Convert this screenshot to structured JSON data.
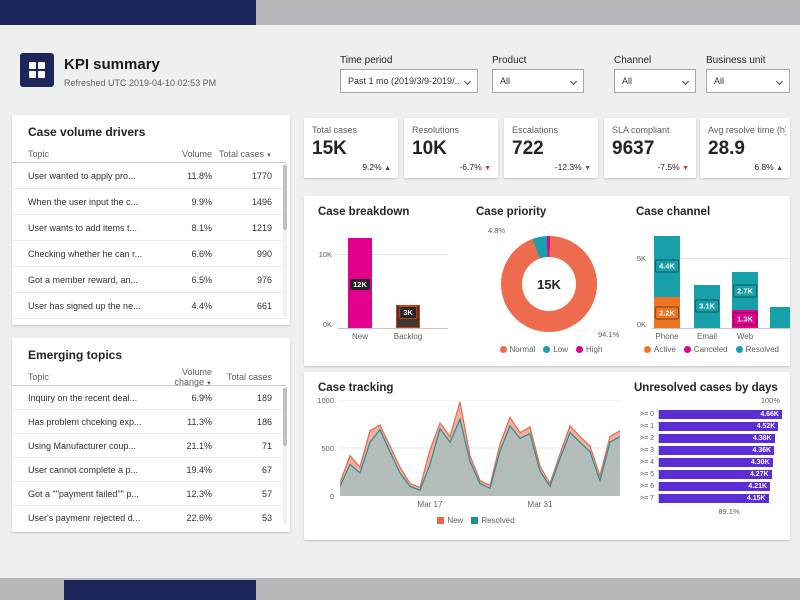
{
  "header": {
    "title": "KPI summary",
    "refreshed": "Refreshed UTC 2019-04-10 02:53 PM"
  },
  "filters": [
    {
      "label": "Time period",
      "value": "Past 1 mo (2019/3/9-2019/..."
    },
    {
      "label": "Product",
      "value": "All"
    },
    {
      "label": "Channel",
      "value": "All"
    },
    {
      "label": "Business unit",
      "value": "All"
    }
  ],
  "kpis": [
    {
      "title": "Total cases",
      "value": "15K",
      "delta": "9.2%",
      "arrow": "▲",
      "color": "#8c1a1f"
    },
    {
      "title": "Resolutions",
      "value": "10K",
      "delta": "-6.7%",
      "arrow": "▼",
      "color": "#d13438"
    },
    {
      "title": "Escalations",
      "value": "722",
      "delta": "-12.3%",
      "arrow": "▼",
      "color": "#127d8f"
    },
    {
      "title": "SLA compliant",
      "value": "9637",
      "delta": "-7.5%",
      "arrow": "▼",
      "color": "#d13438"
    },
    {
      "title": "Avg resolve time (h)",
      "value": "28.9",
      "delta": "6.8%",
      "arrow": "▲",
      "color": "#8c1a1f"
    }
  ],
  "drivers": {
    "title": "Case volume drivers",
    "columns": [
      "Topic",
      "Volume",
      "Total cases"
    ],
    "rows": [
      {
        "topic": "User wanted to apply pro...",
        "volume": "11.8%",
        "total": "1770"
      },
      {
        "topic": "When the user input the c...",
        "volume": "9.9%",
        "total": "1496"
      },
      {
        "topic": "User wants to add items t...",
        "volume": "8.1%",
        "total": "1219"
      },
      {
        "topic": "Checking whether he can r...",
        "volume": "6.6%",
        "total": "990"
      },
      {
        "topic": "Got a member reward, an...",
        "volume": "6.5%",
        "total": "976"
      },
      {
        "topic": "User has signed up the ne...",
        "volume": "4.4%",
        "total": "661"
      }
    ]
  },
  "emerging": {
    "title": "Emerging topics",
    "columns": [
      "Topic",
      "Volume change",
      "Total cases"
    ],
    "rows": [
      {
        "topic": "Inquiry on the recent deal...",
        "volume": "6.9%",
        "total": "189"
      },
      {
        "topic": "Has problem chceking exp...",
        "volume": "11.3%",
        "total": "186"
      },
      {
        "topic": "Using Manufacturer coup...",
        "volume": "21.1%",
        "total": "71"
      },
      {
        "topic": "User cannot complete a p...",
        "volume": "19.4%",
        "total": "67"
      },
      {
        "topic": "Got a \"\"payment failed\"\" p...",
        "volume": "12.3%",
        "total": "57"
      },
      {
        "topic": "User's paymenr rejected d...",
        "volume": "22.6%",
        "total": "53"
      }
    ]
  },
  "chart_data": [
    {
      "id": "case_breakdown",
      "type": "bar",
      "title": "Case breakdown",
      "categories": [
        "New",
        "Backlog"
      ],
      "values": [
        12000,
        3000
      ],
      "value_labels": [
        "12K",
        "3K"
      ],
      "colors": [
        "#e3008c",
        "#3b3a39"
      ],
      "highlighted": [
        false,
        true
      ],
      "ylim": [
        0,
        13000
      ],
      "yticks": [
        "0K",
        "10K"
      ]
    },
    {
      "id": "case_priority",
      "type": "pie",
      "title": "Case priority",
      "center_label": "15K",
      "slices": [
        {
          "name": "Normal",
          "pct": 94.1,
          "color": "#ee6c4d"
        },
        {
          "name": "Low",
          "pct": 4.8,
          "color": "#18a0aa"
        },
        {
          "name": "High",
          "pct": 1.1,
          "color": "#e3008c"
        }
      ],
      "callouts": [
        "4.8%",
        "94.1%"
      ]
    },
    {
      "id": "case_channel",
      "type": "bar",
      "title": "Case channel",
      "categories": [
        "Phone",
        "Email",
        "Web",
        ""
      ],
      "series_legend": [
        {
          "name": "Active",
          "color": "#ee7523"
        },
        {
          "name": "Canceled",
          "color": "#e3008c"
        },
        {
          "name": "Resolved",
          "color": "#18a0aa"
        }
      ],
      "stacks": [
        [
          {
            "label": "2.2K",
            "value": 2200,
            "color": "#ee7523"
          },
          {
            "label": "4.4K",
            "value": 4400,
            "color": "#18a0aa"
          }
        ],
        [
          {
            "label": "3.1K",
            "value": 3100,
            "color": "#18a0aa"
          }
        ],
        [
          {
            "label": "1.3K",
            "value": 1300,
            "color": "#e3008c"
          },
          {
            "label": "2.7K",
            "value": 2700,
            "color": "#18a0aa"
          }
        ],
        [
          {
            "label": "",
            "value": 1500,
            "color": "#18a0aa"
          }
        ]
      ],
      "ylim": [
        0,
        7000
      ],
      "yticks": [
        "0K",
        "5K"
      ]
    },
    {
      "id": "case_tracking",
      "type": "area",
      "title": "Case tracking",
      "ylim": [
        0,
        1000
      ],
      "yticks": [
        "0",
        "500",
        "1000"
      ],
      "xticks": [
        "Mar 17",
        "Mar 31"
      ],
      "series": [
        {
          "name": "New",
          "color": "#e8684a",
          "fill": "#f0a18c",
          "values": [
            140,
            420,
            300,
            680,
            740,
            520,
            300,
            130,
            90,
            480,
            760,
            620,
            980,
            420,
            160,
            110,
            540,
            820,
            660,
            720,
            310,
            130,
            440,
            730,
            620,
            520,
            210,
            620,
            680
          ]
        },
        {
          "name": "Resolved",
          "color": "#1f8e97",
          "fill": "#a9bec0",
          "values": [
            100,
            330,
            240,
            560,
            690,
            460,
            240,
            100,
            60,
            330,
            700,
            560,
            800,
            360,
            130,
            80,
            470,
            730,
            600,
            650,
            260,
            100,
            390,
            660,
            560,
            460,
            160,
            560,
            620
          ]
        }
      ]
    },
    {
      "id": "unresolved",
      "type": "bar",
      "title": "Unresolved cases by days",
      "categories": [
        ">= 0",
        ">= 1",
        ">= 2",
        ">= 3",
        ">= 4",
        ">= 5",
        ">= 6",
        ">= 7"
      ],
      "values": [
        4660,
        4520,
        4380,
        4360,
        4300,
        4270,
        4210,
        4150
      ],
      "value_labels": [
        "4.66K",
        "4.52K",
        "4.38K",
        "4.36K",
        "4.30K",
        "4.27K",
        "4.21K",
        "4.15K"
      ],
      "color": "#5b2dd5",
      "top_pct": "100%",
      "bottom_pct": "89.1%"
    }
  ]
}
